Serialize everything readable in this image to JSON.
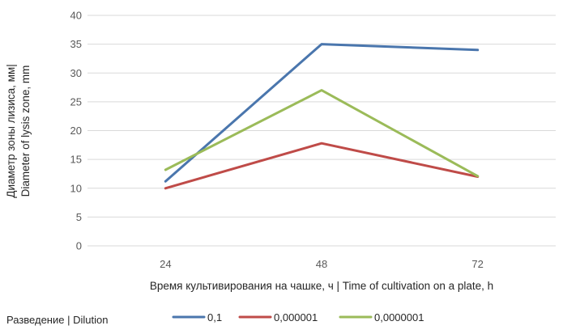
{
  "chart_data": {
    "type": "line",
    "title": "",
    "categories": [
      "24",
      "48",
      "72"
    ],
    "xlabel": "Время культивирования на чашке, ч | Time of cultivation on a plate, h",
    "ylabel_line1": "Диаметр зоны лизиса, мм|",
    "ylabel_line2": "Diameter of lysis zone, mm",
    "ylim": [
      0,
      40
    ],
    "yticks": [
      "0",
      "5",
      "10",
      "15",
      "20",
      "25",
      "30",
      "35",
      "40"
    ],
    "grid": "horizontal",
    "legend": {
      "placement": "bottom",
      "title": "Разведение | Dilution"
    },
    "series": [
      {
        "name": "0,1",
        "values": [
          11.2,
          35,
          34
        ],
        "color": "#4a76ad"
      },
      {
        "name": "0,000001",
        "values": [
          10,
          17.8,
          12
        ],
        "color": "#bf4b48"
      },
      {
        "name": "0,0000001",
        "values": [
          13.2,
          27,
          12.1
        ],
        "color": "#9bbb59"
      }
    ]
  }
}
